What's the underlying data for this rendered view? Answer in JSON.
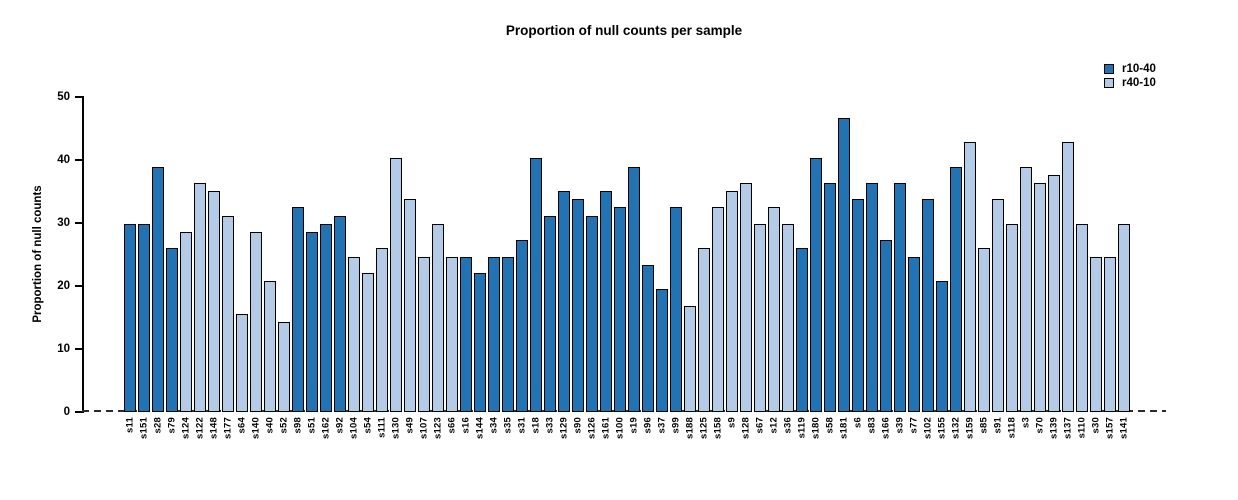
{
  "title": "Proportion of null counts per sample",
  "y_axis": {
    "label": "Proportion of null counts",
    "ticks": [
      0,
      10,
      20,
      30,
      40,
      50
    ]
  },
  "legend": [
    {
      "label": "r10-40",
      "color": "#2173b4"
    },
    {
      "label": "r40-10",
      "color": "#b4cbe8"
    }
  ],
  "colors": {
    "dark": "#2173b4",
    "light": "#b4cbe8",
    "bar_border": "#000000",
    "baseline": "#2b2b2b"
  },
  "chart_data": {
    "type": "bar",
    "title": "Proportion of null counts per sample",
    "xlabel": "",
    "ylabel": "Proportion of null counts",
    "ylim": [
      0,
      50
    ],
    "grid": false,
    "legend_position": "top-right",
    "series_legend": [
      "r10-40",
      "r40-10"
    ],
    "baseline_style": "dashed-at-zero",
    "bars": [
      {
        "label": "s11",
        "value": 29.87,
        "series": "r10-40"
      },
      {
        "label": "s151",
        "value": 29.87,
        "series": "r10-40"
      },
      {
        "label": "s28",
        "value": 38.96,
        "series": "r10-40"
      },
      {
        "label": "s79",
        "value": 25.97,
        "series": "r10-40"
      },
      {
        "label": "s124",
        "value": 28.57,
        "series": "r40-10"
      },
      {
        "label": "s122",
        "value": 36.36,
        "series": "r40-10"
      },
      {
        "label": "s148",
        "value": 35.06,
        "series": "r40-10"
      },
      {
        "label": "s177",
        "value": 31.17,
        "series": "r40-10"
      },
      {
        "label": "s64",
        "value": 15.58,
        "series": "r40-10"
      },
      {
        "label": "s140",
        "value": 28.57,
        "series": "r40-10"
      },
      {
        "label": "s40",
        "value": 20.78,
        "series": "r40-10"
      },
      {
        "label": "s52",
        "value": 14.29,
        "series": "r40-10"
      },
      {
        "label": "s98",
        "value": 32.47,
        "series": "r10-40"
      },
      {
        "label": "s51",
        "value": 28.57,
        "series": "r10-40"
      },
      {
        "label": "s162",
        "value": 29.87,
        "series": "r10-40"
      },
      {
        "label": "s92",
        "value": 31.17,
        "series": "r10-40"
      },
      {
        "label": "s104",
        "value": 24.68,
        "series": "r40-10"
      },
      {
        "label": "s54",
        "value": 22.08,
        "series": "r40-10"
      },
      {
        "label": "s111",
        "value": 25.97,
        "series": "r40-10"
      },
      {
        "label": "s130",
        "value": 40.26,
        "series": "r40-10"
      },
      {
        "label": "s49",
        "value": 33.77,
        "series": "r40-10"
      },
      {
        "label": "s107",
        "value": 24.68,
        "series": "r40-10"
      },
      {
        "label": "s123",
        "value": 29.87,
        "series": "r40-10"
      },
      {
        "label": "s66",
        "value": 24.68,
        "series": "r40-10"
      },
      {
        "label": "s16",
        "value": 24.68,
        "series": "r10-40"
      },
      {
        "label": "s144",
        "value": 22.08,
        "series": "r10-40"
      },
      {
        "label": "s34",
        "value": 24.68,
        "series": "r10-40"
      },
      {
        "label": "s35",
        "value": 24.68,
        "series": "r10-40"
      },
      {
        "label": "s31",
        "value": 27.27,
        "series": "r10-40"
      },
      {
        "label": "s18",
        "value": 40.26,
        "series": "r10-40"
      },
      {
        "label": "s33",
        "value": 31.17,
        "series": "r10-40"
      },
      {
        "label": "s129",
        "value": 35.06,
        "series": "r10-40"
      },
      {
        "label": "s90",
        "value": 33.77,
        "series": "r10-40"
      },
      {
        "label": "s126",
        "value": 31.17,
        "series": "r10-40"
      },
      {
        "label": "s161",
        "value": 35.06,
        "series": "r10-40"
      },
      {
        "label": "s100",
        "value": 32.47,
        "series": "r10-40"
      },
      {
        "label": "s19",
        "value": 38.96,
        "series": "r10-40"
      },
      {
        "label": "s96",
        "value": 23.38,
        "series": "r10-40"
      },
      {
        "label": "s37",
        "value": 19.48,
        "series": "r10-40"
      },
      {
        "label": "s99",
        "value": 32.47,
        "series": "r10-40"
      },
      {
        "label": "s188",
        "value": 16.88,
        "series": "r40-10"
      },
      {
        "label": "s125",
        "value": 25.97,
        "series": "r40-10"
      },
      {
        "label": "s158",
        "value": 32.47,
        "series": "r40-10"
      },
      {
        "label": "s9",
        "value": 35.06,
        "series": "r40-10"
      },
      {
        "label": "s128",
        "value": 36.36,
        "series": "r40-10"
      },
      {
        "label": "s67",
        "value": 29.87,
        "series": "r40-10"
      },
      {
        "label": "s12",
        "value": 32.47,
        "series": "r40-10"
      },
      {
        "label": "s36",
        "value": 29.87,
        "series": "r40-10"
      },
      {
        "label": "s119",
        "value": 25.97,
        "series": "r10-40"
      },
      {
        "label": "s180",
        "value": 40.26,
        "series": "r10-40"
      },
      {
        "label": "s58",
        "value": 36.36,
        "series": "r10-40"
      },
      {
        "label": "s181",
        "value": 46.75,
        "series": "r10-40"
      },
      {
        "label": "s6",
        "value": 33.77,
        "series": "r10-40"
      },
      {
        "label": "s83",
        "value": 36.36,
        "series": "r10-40"
      },
      {
        "label": "s166",
        "value": 27.27,
        "series": "r10-40"
      },
      {
        "label": "s39",
        "value": 36.36,
        "series": "r10-40"
      },
      {
        "label": "s77",
        "value": 24.68,
        "series": "r10-40"
      },
      {
        "label": "s102",
        "value": 33.77,
        "series": "r10-40"
      },
      {
        "label": "s155",
        "value": 20.78,
        "series": "r10-40"
      },
      {
        "label": "s132",
        "value": 38.96,
        "series": "r10-40"
      },
      {
        "label": "s159",
        "value": 42.86,
        "series": "r40-10"
      },
      {
        "label": "s85",
        "value": 25.97,
        "series": "r40-10"
      },
      {
        "label": "s91",
        "value": 33.77,
        "series": "r40-10"
      },
      {
        "label": "s118",
        "value": 29.87,
        "series": "r40-10"
      },
      {
        "label": "s3",
        "value": 38.96,
        "series": "r40-10"
      },
      {
        "label": "s70",
        "value": 36.36,
        "series": "r40-10"
      },
      {
        "label": "s139",
        "value": 37.66,
        "series": "r40-10"
      },
      {
        "label": "s137",
        "value": 42.86,
        "series": "r40-10"
      },
      {
        "label": "s110",
        "value": 29.87,
        "series": "r40-10"
      },
      {
        "label": "s30",
        "value": 24.68,
        "series": "r40-10"
      },
      {
        "label": "s157",
        "value": 24.68,
        "series": "r40-10"
      },
      {
        "label": "s141",
        "value": 29.87,
        "series": "r40-10"
      }
    ]
  }
}
